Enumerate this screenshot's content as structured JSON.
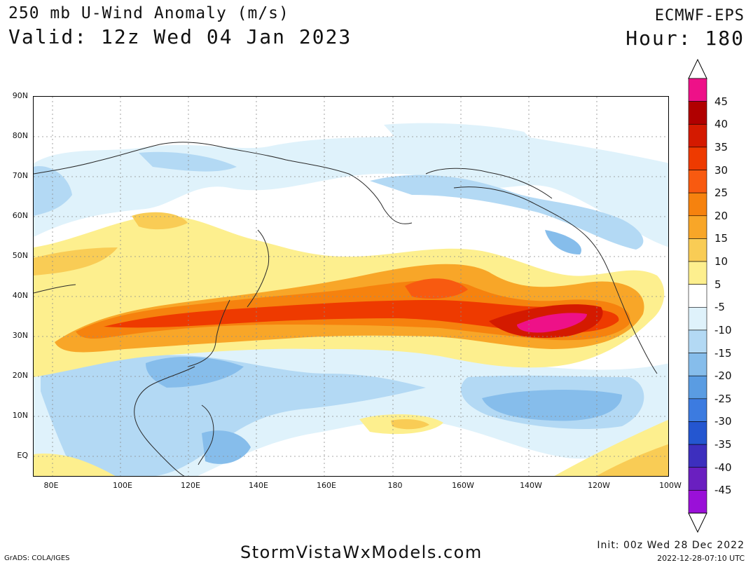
{
  "header": {
    "title": "250 mb U-Wind Anomaly (m/s)",
    "valid": "Valid: 12z Wed 04 Jan 2023",
    "model": "ECMWF-EPS",
    "hour": "Hour: 180"
  },
  "map": {
    "lat_labels": [
      "90N",
      "80N",
      "70N",
      "60N",
      "50N",
      "40N",
      "30N",
      "20N",
      "10N",
      "EQ"
    ],
    "lon_labels": [
      "80E",
      "100E",
      "120E",
      "140E",
      "160E",
      "180",
      "160W",
      "140W",
      "120W",
      "100W"
    ],
    "gridline_color": "#8c8c8c"
  },
  "colorbar": {
    "labels": [
      "45",
      "40",
      "35",
      "30",
      "25",
      "20",
      "15",
      "10",
      "5",
      "-5",
      "-10",
      "-15",
      "-20",
      "-25",
      "-30",
      "-35",
      "-40",
      "-45"
    ],
    "colors": [
      "#ee1188",
      "#b00000",
      "#d41a00",
      "#ee3a00",
      "#f85a10",
      "#f6820e",
      "#f8a628",
      "#f9cc55",
      "#fdef8e",
      "#ffffff",
      "#dff2fb",
      "#b3d9f4",
      "#86bdeb",
      "#5a9ce2",
      "#3c7be0",
      "#2456d0",
      "#3d2fbe",
      "#6a1fc0",
      "#9a10d8"
    ]
  },
  "footer": {
    "site": "StormVistaWxModels.com",
    "grads": "GrADS: COLA/IGES",
    "init": "Init: 00z Wed 28 Dec 2022",
    "timestamp": "2022-12-28-07:10 UTC"
  }
}
